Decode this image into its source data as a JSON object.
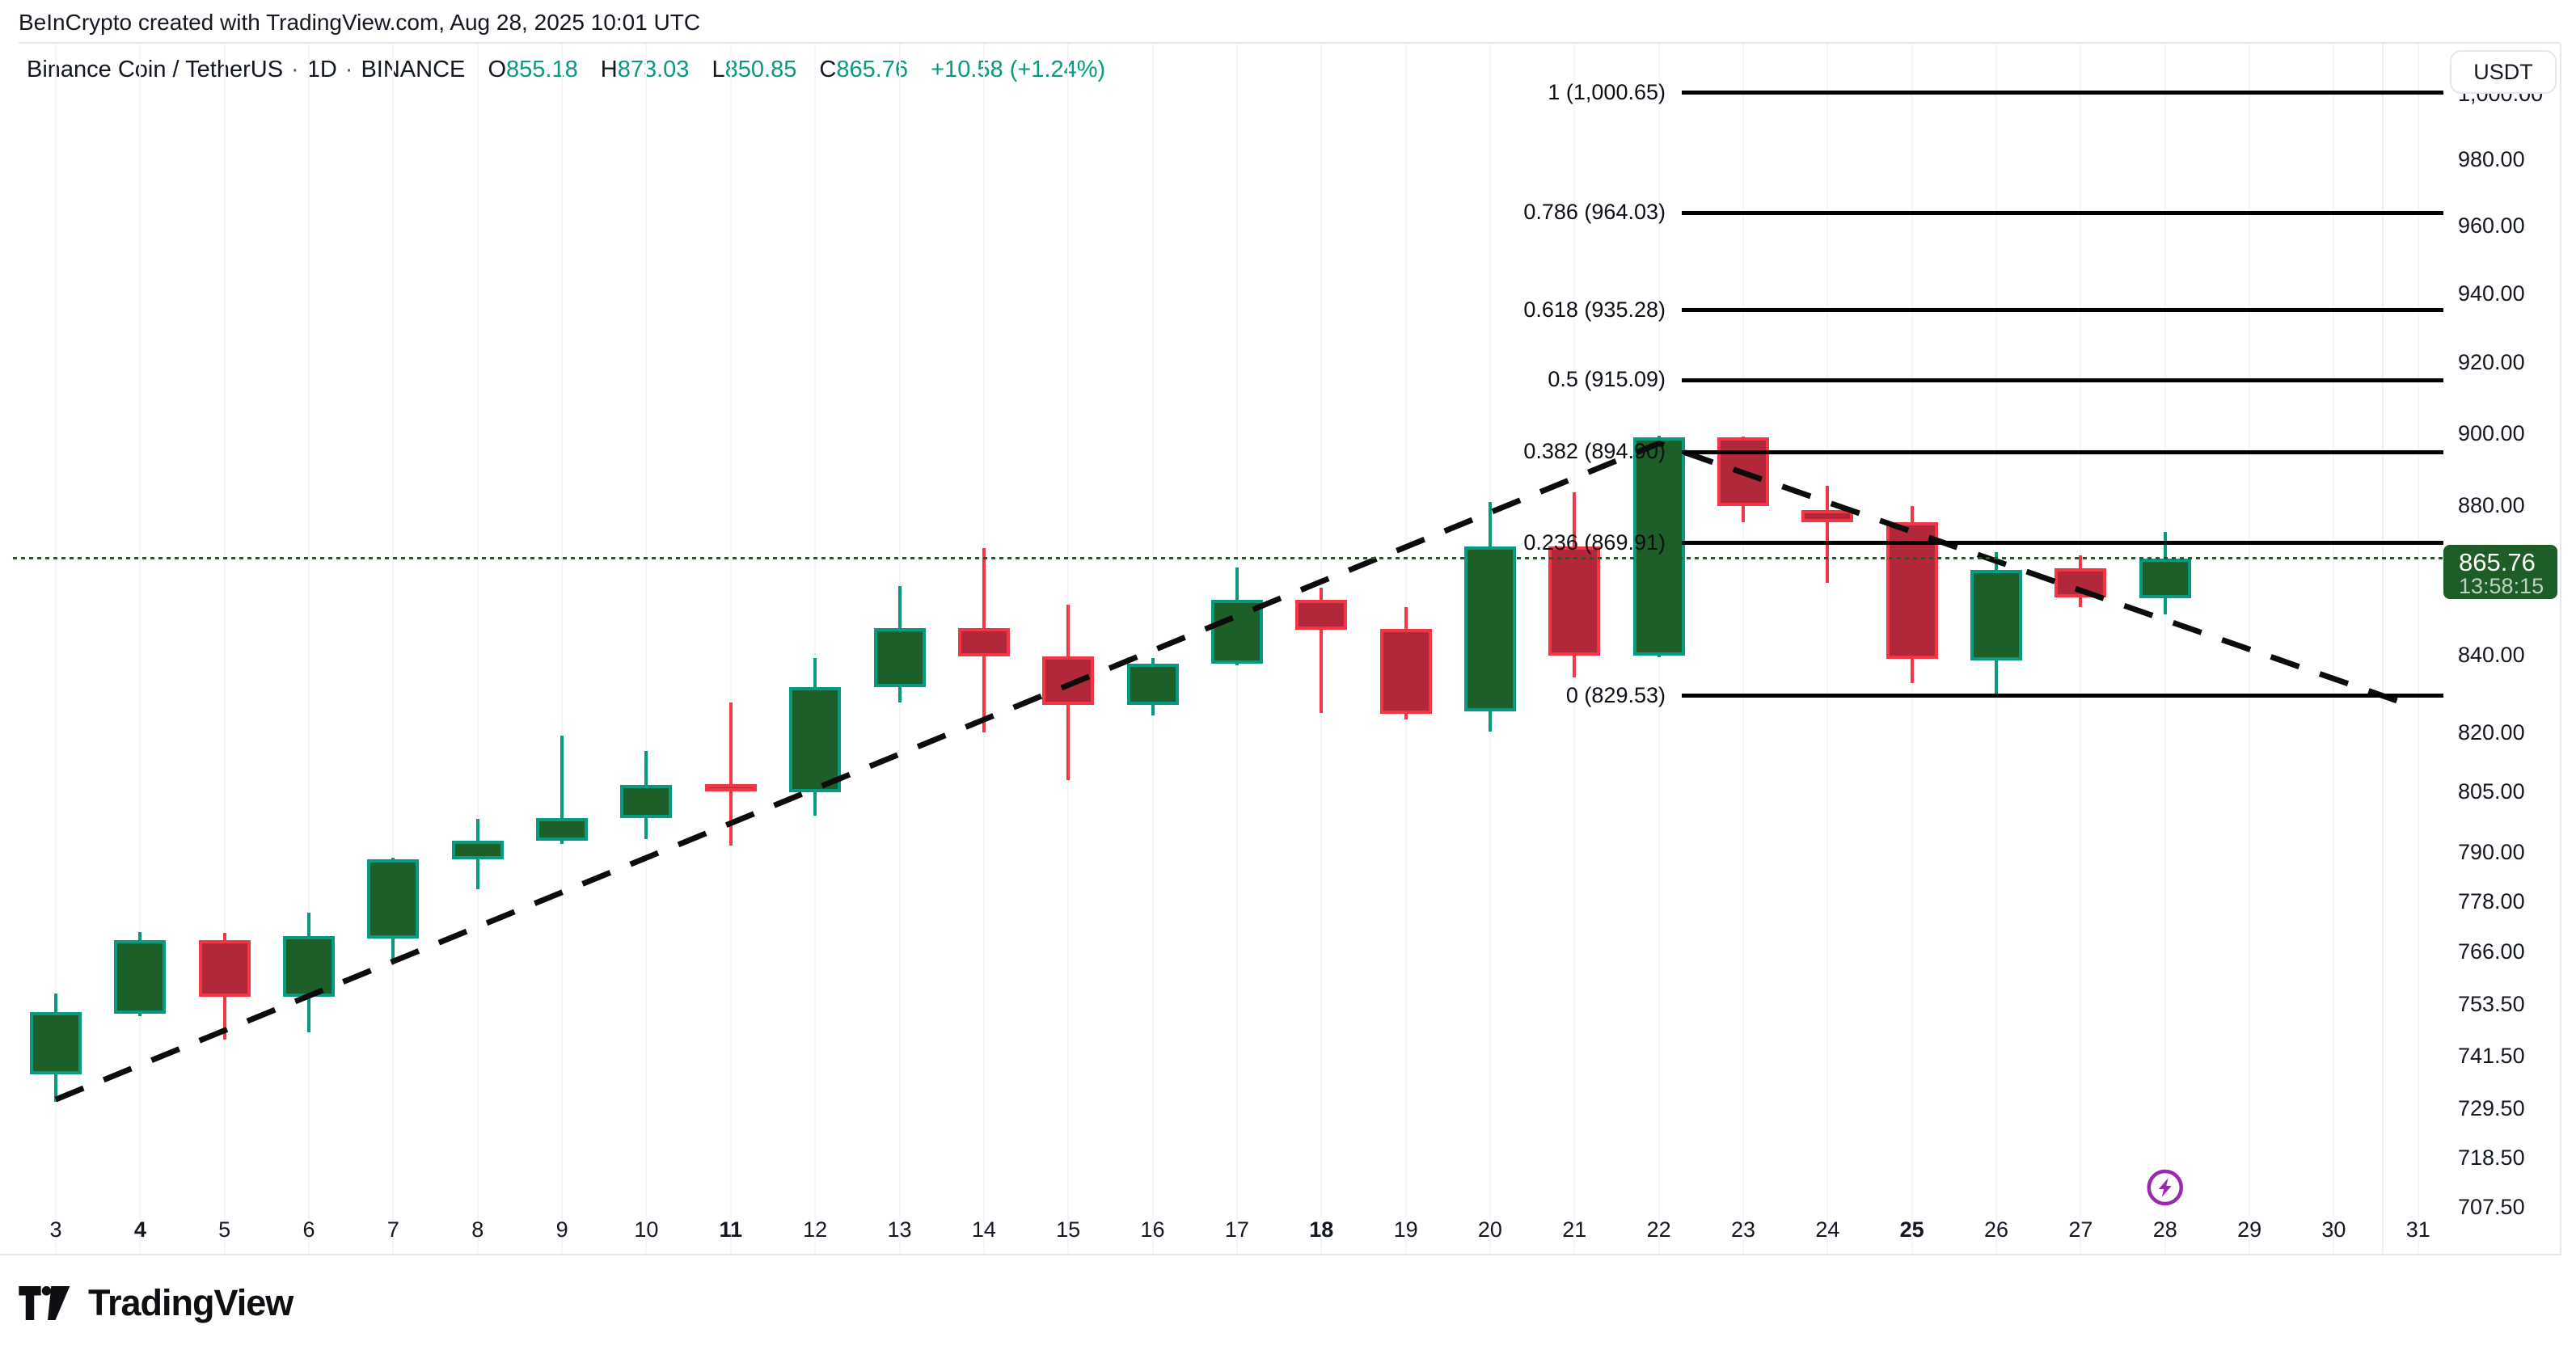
{
  "attribution": "BeInCrypto created with TradingView.com, Aug 28, 2025 10:01 UTC",
  "legend": {
    "symbol": "Binance Coin / TetherUS",
    "separator": "·",
    "interval": "1D",
    "exchange": "BINANCE",
    "ohlc": [
      {
        "label": "O",
        "value": "855.18"
      },
      {
        "label": "H",
        "value": "873.03"
      },
      {
        "label": "L",
        "value": "850.85"
      },
      {
        "label": "C",
        "value": "865.76"
      }
    ],
    "change": "+10.58 (+1.24%)"
  },
  "price_axis": {
    "currency": "USDT",
    "ticks": [
      "1,000.00",
      "980.00",
      "960.00",
      "940.00",
      "920.00",
      "900.00",
      "880.00",
      "840.00",
      "820.00",
      "805.00",
      "790.00",
      "778.00",
      "766.00",
      "753.50",
      "741.50",
      "729.50",
      "718.50",
      "707.50"
    ],
    "last_price": "865.76",
    "countdown": "13:58:15"
  },
  "time_axis": {
    "labels": [
      {
        "text": "3",
        "bold": false
      },
      {
        "text": "4",
        "bold": true
      },
      {
        "text": "5",
        "bold": false
      },
      {
        "text": "6",
        "bold": false
      },
      {
        "text": "7",
        "bold": false
      },
      {
        "text": "8",
        "bold": false
      },
      {
        "text": "9",
        "bold": false
      },
      {
        "text": "10",
        "bold": false
      },
      {
        "text": "11",
        "bold": true
      },
      {
        "text": "12",
        "bold": false
      },
      {
        "text": "13",
        "bold": false
      },
      {
        "text": "14",
        "bold": false
      },
      {
        "text": "15",
        "bold": false
      },
      {
        "text": "16",
        "bold": false
      },
      {
        "text": "17",
        "bold": false
      },
      {
        "text": "18",
        "bold": true
      },
      {
        "text": "19",
        "bold": false
      },
      {
        "text": "20",
        "bold": false
      },
      {
        "text": "21",
        "bold": false
      },
      {
        "text": "22",
        "bold": false
      },
      {
        "text": "23",
        "bold": false
      },
      {
        "text": "24",
        "bold": false
      },
      {
        "text": "25",
        "bold": true
      },
      {
        "text": "26",
        "bold": false
      },
      {
        "text": "27",
        "bold": false
      },
      {
        "text": "28",
        "bold": false
      },
      {
        "text": "29",
        "bold": false
      },
      {
        "text": "30",
        "bold": false
      },
      {
        "text": "31",
        "bold": false
      }
    ],
    "first_day": 3,
    "marker_day": 28
  },
  "chart_data": {
    "type": "candlestick",
    "title": "Binance Coin / TetherUS · 1D · BINANCE",
    "scale": "log",
    "ylim": [
      707.5,
      1000.65
    ],
    "x_unit": "day of August 2025",
    "current_price": 865.76,
    "candles": [
      {
        "day": 3,
        "o": 737.4,
        "h": 756.3,
        "l": 731.1,
        "c": 751.8
      },
      {
        "day": 4,
        "o": 751.5,
        "h": 770.8,
        "l": 751.0,
        "c": 768.9
      },
      {
        "day": 5,
        "o": 768.9,
        "h": 770.7,
        "l": 745.5,
        "c": 755.5
      },
      {
        "day": 6,
        "o": 755.4,
        "h": 775.4,
        "l": 747.1,
        "c": 769.8
      },
      {
        "day": 7,
        "o": 769.2,
        "h": 788.9,
        "l": 764.0,
        "c": 788.4
      },
      {
        "day": 8,
        "o": 788.4,
        "h": 798.4,
        "l": 781.1,
        "c": 793.1
      },
      {
        "day": 9,
        "o": 793.1,
        "h": 819.3,
        "l": 792.3,
        "c": 798.6
      },
      {
        "day": 10,
        "o": 798.6,
        "h": 815.5,
        "l": 793.5,
        "c": 806.9
      },
      {
        "day": 11,
        "o": 807.1,
        "h": 827.8,
        "l": 791.8,
        "c": 805.2
      },
      {
        "day": 12,
        "o": 805.0,
        "h": 839.3,
        "l": 799.2,
        "c": 831.9
      },
      {
        "day": 13,
        "o": 831.9,
        "h": 858.4,
        "l": 827.8,
        "c": 847.2
      },
      {
        "day": 14,
        "o": 847.2,
        "h": 868.6,
        "l": 820.1,
        "c": 839.7
      },
      {
        "day": 15,
        "o": 839.7,
        "h": 853.4,
        "l": 808.1,
        "c": 827.3
      },
      {
        "day": 16,
        "o": 827.3,
        "h": 839.3,
        "l": 824.6,
        "c": 837.9
      },
      {
        "day": 17,
        "o": 837.9,
        "h": 863.3,
        "l": 837.4,
        "c": 854.8
      },
      {
        "day": 18,
        "o": 854.8,
        "h": 857.9,
        "l": 825.1,
        "c": 846.7
      },
      {
        "day": 19,
        "o": 847.0,
        "h": 852.8,
        "l": 823.5,
        "c": 825.0
      },
      {
        "day": 20,
        "o": 825.5,
        "h": 881.0,
        "l": 820.4,
        "c": 868.9
      },
      {
        "day": 21,
        "o": 868.9,
        "h": 883.8,
        "l": 834.4,
        "c": 840.1
      },
      {
        "day": 22,
        "o": 840.1,
        "h": 899.5,
        "l": 839.6,
        "c": 899.0
      },
      {
        "day": 23,
        "o": 899.0,
        "h": 899.2,
        "l": 875.6,
        "c": 880.0
      },
      {
        "day": 24,
        "o": 878.9,
        "h": 885.5,
        "l": 859.2,
        "c": 875.6
      },
      {
        "day": 25,
        "o": 875.6,
        "h": 880.0,
        "l": 832.8,
        "c": 839.1
      },
      {
        "day": 26,
        "o": 838.7,
        "h": 867.4,
        "l": 829.6,
        "c": 862.6
      },
      {
        "day": 27,
        "o": 863.1,
        "h": 866.5,
        "l": 852.8,
        "c": 855.4
      },
      {
        "day": 28,
        "o": 855.18,
        "h": 873.03,
        "l": 850.85,
        "c": 865.76
      }
    ],
    "fibonacci_levels": [
      {
        "label": "1 (1,000.65)",
        "value": 1000.65
      },
      {
        "label": "0.786 (964.03)",
        "value": 964.03
      },
      {
        "label": "0.618 (935.28)",
        "value": 935.28
      },
      {
        "label": "0.5 (915.09)",
        "value": 915.09
      },
      {
        "label": "0.382 (894.90)",
        "value": 894.9
      },
      {
        "label": "0.236 (869.91)",
        "value": 869.91
      },
      {
        "label": "0 (829.53)",
        "value": 829.53
      }
    ],
    "trendline": {
      "style": "dashed",
      "points": [
        {
          "day": 3,
          "price": 731.7
        },
        {
          "day": 22,
          "price": 897.3
        },
        {
          "day": 30.8,
          "price": 827.9
        }
      ]
    }
  },
  "footer": {
    "brand": "TradingView"
  },
  "colors": {
    "up_fill": "#1e5e28",
    "up_border": "#089981",
    "down_fill": "#b2283a",
    "down_border": "#f23645",
    "fib_line": "#000000",
    "trend_line": "#0c0c0c",
    "price_line": "#1e5c28",
    "badge_bg": "#1e5c28",
    "marker_purple": "#9c27b0",
    "value_teal": "#089981",
    "text": "#131722",
    "grid": "#f4f6f9",
    "border": "#e4e7ec"
  }
}
